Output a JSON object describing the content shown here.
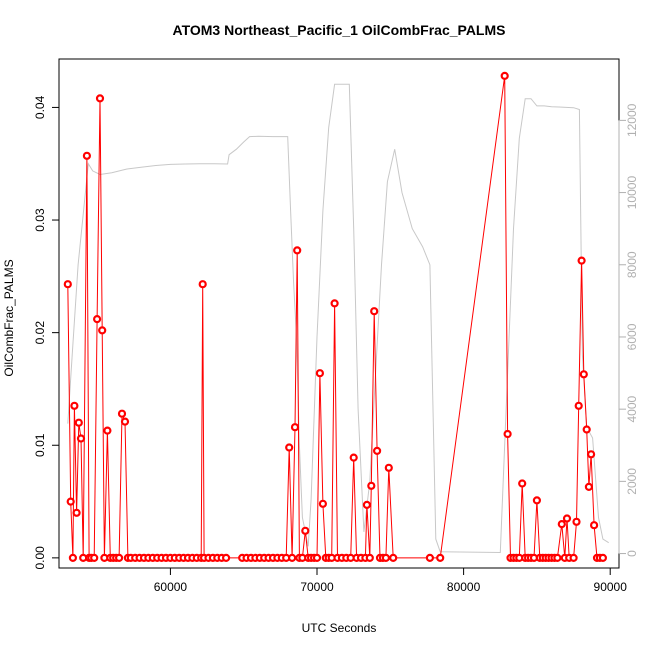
{
  "chart_data": {
    "type": "line",
    "title": "ATOM3 Northeast_Pacific_1 OilCombFrac_PALMS",
    "xlabel": "UTC Seconds",
    "ylabel": "OilCombFrac_PALMS",
    "xlim": [
      52400,
      90600
    ],
    "ylim": [
      -0.0009,
      0.0443
    ],
    "y2lim": [
      -400,
      13700
    ],
    "x_ticks": [
      60000,
      70000,
      80000,
      90000
    ],
    "x_tick_labels": [
      "60000",
      "70000",
      "80000",
      "90000"
    ],
    "y_ticks": [
      0.0,
      0.01,
      0.02,
      0.03,
      0.04
    ],
    "y_tick_labels": [
      "0.00",
      "0.01",
      "0.02",
      "0.03",
      "0.04"
    ],
    "y2_ticks": [
      0,
      2000,
      4000,
      6000,
      8000,
      10000,
      12000
    ],
    "y2_tick_labels": [
      "0",
      "2000",
      "4000",
      "6000",
      "8000",
      "10000",
      "12000"
    ],
    "grid": false,
    "series": [
      {
        "role": "primary",
        "color": "#ff0000",
        "points": [
          [
            53000,
            0.0243
          ],
          [
            53200,
            0.005
          ],
          [
            53350,
            0.0
          ],
          [
            53450,
            0.0135
          ],
          [
            53600,
            0.004
          ],
          [
            53750,
            0.012
          ],
          [
            53900,
            0.0106
          ],
          [
            54050,
            0.0
          ],
          [
            54300,
            0.0357
          ],
          [
            54450,
            0.0
          ],
          [
            54600,
            0.0
          ],
          [
            54800,
            0.0
          ],
          [
            55000,
            0.0212
          ],
          [
            55200,
            0.0408
          ],
          [
            55350,
            0.0202
          ],
          [
            55500,
            0.0
          ],
          [
            55700,
            0.0113
          ],
          [
            55900,
            0.0
          ],
          [
            56100,
            0.0
          ],
          [
            56300,
            0.0
          ],
          [
            56500,
            0.0
          ],
          [
            56700,
            0.0128
          ],
          [
            56900,
            0.0121
          ],
          [
            57100,
            0.0
          ],
          [
            57300,
            0.0
          ],
          [
            57600,
            0.0
          ],
          [
            57900,
            0.0
          ],
          [
            58200,
            0.0
          ],
          [
            58500,
            0.0
          ],
          [
            58800,
            0.0
          ],
          [
            59100,
            0.0
          ],
          [
            59400,
            0.0
          ],
          [
            59700,
            0.0
          ],
          [
            60000,
            0.0
          ],
          [
            60300,
            0.0
          ],
          [
            60600,
            0.0
          ],
          [
            60900,
            0.0
          ],
          [
            61200,
            0.0
          ],
          [
            61500,
            0.0
          ],
          [
            61800,
            0.0
          ],
          [
            62100,
            0.0
          ],
          [
            62200,
            0.0243
          ],
          [
            62300,
            0.0
          ],
          [
            62600,
            0.0
          ],
          [
            62900,
            0.0
          ],
          [
            63200,
            0.0
          ],
          [
            63500,
            0.0
          ],
          [
            63800,
            0.0
          ],
          [
            64900,
            0.0
          ],
          [
            65200,
            0.0
          ],
          [
            65500,
            0.0
          ],
          [
            65800,
            0.0
          ],
          [
            66100,
            0.0
          ],
          [
            66400,
            0.0
          ],
          [
            66700,
            0.0
          ],
          [
            67000,
            0.0
          ],
          [
            67300,
            0.0
          ],
          [
            67600,
            0.0
          ],
          [
            67900,
            0.0
          ],
          [
            68100,
            0.0098
          ],
          [
            68300,
            0.0
          ],
          [
            68500,
            0.0116
          ],
          [
            68650,
            0.0273
          ],
          [
            68800,
            0.0
          ],
          [
            69000,
            0.0
          ],
          [
            69200,
            0.0024
          ],
          [
            69400,
            0.0
          ],
          [
            69600,
            0.0
          ],
          [
            69800,
            0.0
          ],
          [
            70000,
            0.0
          ],
          [
            70200,
            0.0164
          ],
          [
            70400,
            0.0048
          ],
          [
            70600,
            0.0
          ],
          [
            70800,
            0.0
          ],
          [
            71000,
            0.0
          ],
          [
            71200,
            0.0226
          ],
          [
            71400,
            0.0
          ],
          [
            71700,
            0.0
          ],
          [
            72000,
            0.0
          ],
          [
            72300,
            0.0
          ],
          [
            72500,
            0.0089
          ],
          [
            72700,
            0.0
          ],
          [
            73000,
            0.0
          ],
          [
            73300,
            0.0
          ],
          [
            73400,
            0.0047
          ],
          [
            73600,
            0.0
          ],
          [
            73700,
            0.0064
          ],
          [
            73900,
            0.0219
          ],
          [
            74100,
            0.0095
          ],
          [
            74300,
            0.0
          ],
          [
            74500,
            0.0
          ],
          [
            74700,
            0.0
          ],
          [
            74900,
            0.008
          ],
          [
            75200,
            0.0
          ],
          [
            77700,
            0.0
          ],
          [
            78400,
            0.0
          ],
          [
            82800,
            0.0428
          ],
          [
            83000,
            0.011
          ],
          [
            83200,
            0.0
          ],
          [
            83400,
            0.0
          ],
          [
            83600,
            0.0
          ],
          [
            83800,
            0.0
          ],
          [
            84000,
            0.0066
          ],
          [
            84200,
            0.0
          ],
          [
            84400,
            0.0
          ],
          [
            84600,
            0.0
          ],
          [
            84800,
            0.0
          ],
          [
            85000,
            0.0051
          ],
          [
            85200,
            0.0
          ],
          [
            85400,
            0.0
          ],
          [
            85600,
            0.0
          ],
          [
            85800,
            0.0
          ],
          [
            86000,
            0.0
          ],
          [
            86200,
            0.0
          ],
          [
            86400,
            0.0
          ],
          [
            86700,
            0.003
          ],
          [
            86900,
            0.0
          ],
          [
            87050,
            0.0035
          ],
          [
            87200,
            0.0
          ],
          [
            87500,
            0.0
          ],
          [
            87700,
            0.0032
          ],
          [
            87850,
            0.0135
          ],
          [
            88050,
            0.0264
          ],
          [
            88200,
            0.0163
          ],
          [
            88400,
            0.0114
          ],
          [
            88550,
            0.0063
          ],
          [
            88700,
            0.0092
          ],
          [
            88900,
            0.0029
          ],
          [
            89100,
            0.0
          ],
          [
            89300,
            0.0
          ],
          [
            89500,
            0.0
          ]
        ]
      },
      {
        "role": "secondary",
        "color": "#c8c8c8",
        "points": [
          [
            53000,
            3600
          ],
          [
            53300,
            5500
          ],
          [
            53700,
            8000
          ],
          [
            54200,
            10000
          ],
          [
            54400,
            10800
          ],
          [
            54700,
            10600
          ],
          [
            55200,
            10500
          ],
          [
            56000,
            10550
          ],
          [
            57000,
            10650
          ],
          [
            58000,
            10700
          ],
          [
            59000,
            10750
          ],
          [
            60000,
            10780
          ],
          [
            61000,
            10790
          ],
          [
            62000,
            10800
          ],
          [
            63000,
            10800
          ],
          [
            63900,
            10790
          ],
          [
            64000,
            11050
          ],
          [
            64500,
            11200
          ],
          [
            65000,
            11400
          ],
          [
            65400,
            11550
          ],
          [
            66000,
            11560
          ],
          [
            67000,
            11550
          ],
          [
            68000,
            11550
          ],
          [
            68200,
            9500
          ],
          [
            68400,
            7500
          ],
          [
            68600,
            6000
          ],
          [
            68800,
            3000
          ],
          [
            69000,
            1000
          ],
          [
            69400,
            200
          ],
          [
            69600,
            1500
          ],
          [
            70000,
            6000
          ],
          [
            70400,
            9500
          ],
          [
            70800,
            11800
          ],
          [
            71200,
            13000
          ],
          [
            71600,
            13000
          ],
          [
            72200,
            13000
          ],
          [
            72500,
            9000
          ],
          [
            72800,
            4000
          ],
          [
            73200,
            600
          ],
          [
            73600,
            2000
          ],
          [
            74000,
            5000
          ],
          [
            74400,
            8000
          ],
          [
            74800,
            10300
          ],
          [
            75300,
            11200
          ],
          [
            75800,
            10000
          ],
          [
            76500,
            9000
          ],
          [
            77200,
            8500
          ],
          [
            77700,
            8000
          ],
          [
            78100,
            400
          ],
          [
            78400,
            50
          ],
          [
            82500,
            30
          ],
          [
            83000,
            5000
          ],
          [
            83400,
            9000
          ],
          [
            83800,
            11500
          ],
          [
            84200,
            12600
          ],
          [
            84600,
            12600
          ],
          [
            85000,
            12400
          ],
          [
            85500,
            12400
          ],
          [
            86000,
            12380
          ],
          [
            86500,
            12370
          ],
          [
            87000,
            12360
          ],
          [
            87500,
            12350
          ],
          [
            87900,
            12300
          ],
          [
            88100,
            5500
          ],
          [
            88400,
            3500
          ],
          [
            88800,
            3200
          ],
          [
            89200,
            1000
          ],
          [
            89500,
            400
          ],
          [
            89900,
            300
          ]
        ]
      }
    ]
  }
}
